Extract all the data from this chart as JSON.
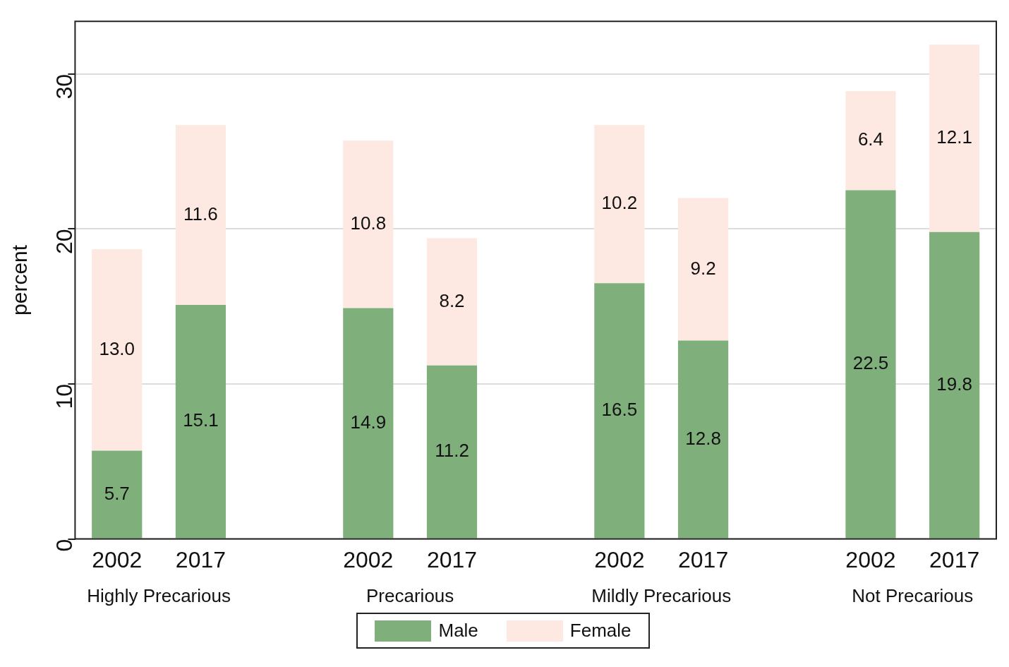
{
  "chart_data": {
    "type": "bar",
    "ylabel": "percent",
    "categories": [
      "2002",
      "2017",
      null,
      "2002",
      "2017",
      null,
      "2002",
      "2017",
      null,
      "2002",
      "2017"
    ],
    "series": [
      {
        "name": "Male",
        "color": "#7fb07c",
        "values": [
          5.7,
          15.1,
          null,
          14.9,
          11.2,
          null,
          16.5,
          12.8,
          null,
          22.5,
          19.8
        ],
        "value_labels": [
          "5.7",
          "15.1",
          null,
          "14.9",
          "11.2",
          null,
          "16.5",
          "12.8",
          null,
          "22.5",
          "19.8"
        ]
      },
      {
        "name": "Female",
        "color": "#fde9e1",
        "values": [
          13.0,
          11.6,
          null,
          10.8,
          8.2,
          null,
          10.2,
          9.2,
          null,
          6.4,
          12.1
        ],
        "value_labels": [
          "13.0",
          "11.6",
          null,
          "10.8",
          "8.2",
          null,
          "10.2",
          "9.2",
          null,
          "6.4",
          "12.1"
        ]
      }
    ],
    "annotations": [
      "Highly Precarious",
      "Precarious",
      "Mildly Precarious",
      "Not Precarious"
    ],
    "stacked": true,
    "ylim": [
      0,
      33.4
    ],
    "yticks": [
      0,
      10,
      20,
      30
    ],
    "grid": "y",
    "legend": "bottom"
  }
}
